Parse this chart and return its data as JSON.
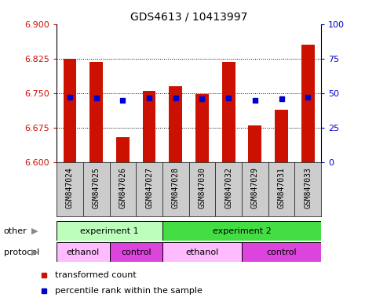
{
  "title": "GDS4613 / 10413997",
  "samples": [
    "GSM847024",
    "GSM847025",
    "GSM847026",
    "GSM847027",
    "GSM847028",
    "GSM847030",
    "GSM847032",
    "GSM847029",
    "GSM847031",
    "GSM847033"
  ],
  "bar_values": [
    6.825,
    6.818,
    6.655,
    6.755,
    6.765,
    6.748,
    6.818,
    6.68,
    6.715,
    6.855
  ],
  "percentile_values": [
    6.742,
    6.74,
    6.735,
    6.74,
    6.74,
    6.738,
    6.74,
    6.735,
    6.738,
    6.742
  ],
  "ylim_left": [
    6.6,
    6.9
  ],
  "ylim_right": [
    0,
    100
  ],
  "yticks_left": [
    6.6,
    6.675,
    6.75,
    6.825,
    6.9
  ],
  "yticks_right": [
    0,
    25,
    50,
    75,
    100
  ],
  "bar_color": "#cc1100",
  "dot_color": "#0000cc",
  "bar_bottom": 6.6,
  "groups_other": [
    {
      "label": "experiment 1",
      "start": 0,
      "end": 4,
      "color": "#bbffbb"
    },
    {
      "label": "experiment 2",
      "start": 4,
      "end": 10,
      "color": "#44dd44"
    }
  ],
  "groups_protocol": [
    {
      "label": "ethanol",
      "start": 0,
      "end": 2,
      "color": "#ffbbff"
    },
    {
      "label": "control",
      "start": 2,
      "end": 4,
      "color": "#dd44dd"
    },
    {
      "label": "ethanol",
      "start": 4,
      "end": 7,
      "color": "#ffbbff"
    },
    {
      "label": "control",
      "start": 7,
      "end": 10,
      "color": "#dd44dd"
    }
  ],
  "legend_items": [
    {
      "label": "transformed count",
      "color": "#cc1100"
    },
    {
      "label": "percentile rank within the sample",
      "color": "#0000cc"
    }
  ],
  "row_labels": [
    "other",
    "protocol"
  ],
  "axis_color_left": "#cc1100",
  "axis_color_right": "#0000cc",
  "xtick_bg": "#cccccc",
  "bar_width": 0.5
}
